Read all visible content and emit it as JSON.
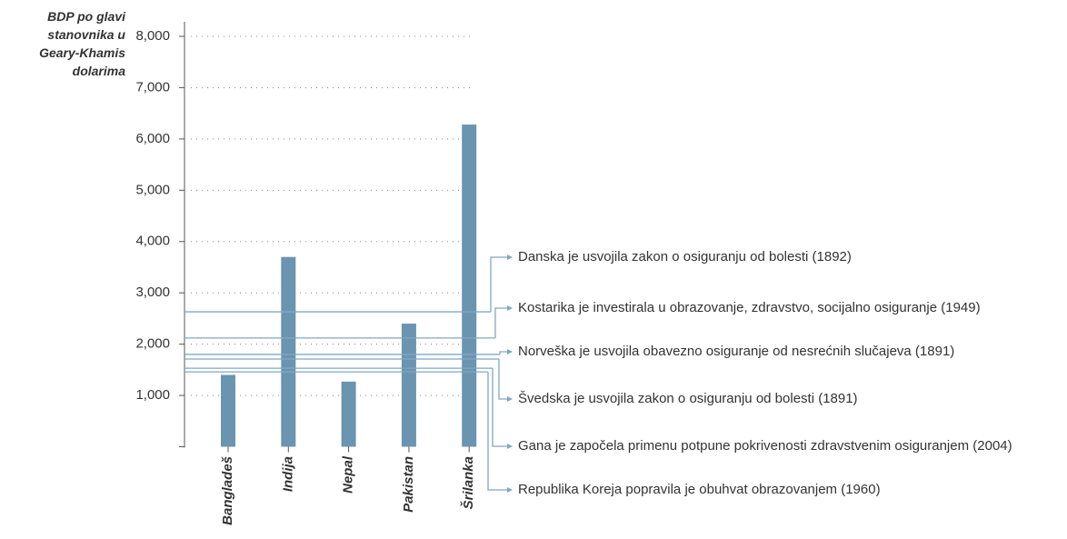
{
  "chart_data": {
    "type": "bar",
    "y_label": "BDP po glavi stanovnika u Geary-Khamis dolarima",
    "categories": [
      "Bangladeš",
      "Indija",
      "Nepal",
      "Pakistan",
      "Šrilanka"
    ],
    "values": [
      1400,
      3700,
      1270,
      2400,
      6280
    ],
    "color": "#6a94b0",
    "ylim": [
      0,
      8000
    ],
    "yticks": [
      {
        "value": 1000,
        "label": "1,000"
      },
      {
        "value": 2000,
        "label": "2,000"
      },
      {
        "value": 3000,
        "label": "3,000"
      },
      {
        "value": 4000,
        "label": "4,000"
      },
      {
        "value": 5000,
        "label": "5,000"
      },
      {
        "value": 6000,
        "label": "6,000"
      },
      {
        "value": 7000,
        "label": "7,000"
      },
      {
        "value": 8000,
        "label": "8,000"
      }
    ],
    "grid": true,
    "annotations": [
      {
        "label": "Danska je usvojila zakon o osiguranju od bolesti (1892)",
        "value": 2630,
        "color": "#7fa8c3"
      },
      {
        "label": "Kostarika je investirala u obrazovanje, zdravstvo, socijalno osiguranje (1949)",
        "value": 2120,
        "color": "#7fa8c3"
      },
      {
        "label": "Norveška je usvojila obavezno osiguranje od nesrećnih slučajeva (1891)",
        "value": 1800,
        "color": "#7fa8c3"
      },
      {
        "label": "Švedska je usvojila zakon o osiguranju od bolesti (1891)",
        "value": 1710,
        "color": "#7fa8c3"
      },
      {
        "label": "Gana je započela primenu potpune pokrivenosti zdravstvenim osiguranjem (2004)",
        "value": 1530,
        "color": "#7fa8c3"
      },
      {
        "label": "Republika Koreja popravila je obuhvat obrazovanjem (1960)",
        "value": 1460,
        "color": "#7fa8c3"
      }
    ]
  }
}
